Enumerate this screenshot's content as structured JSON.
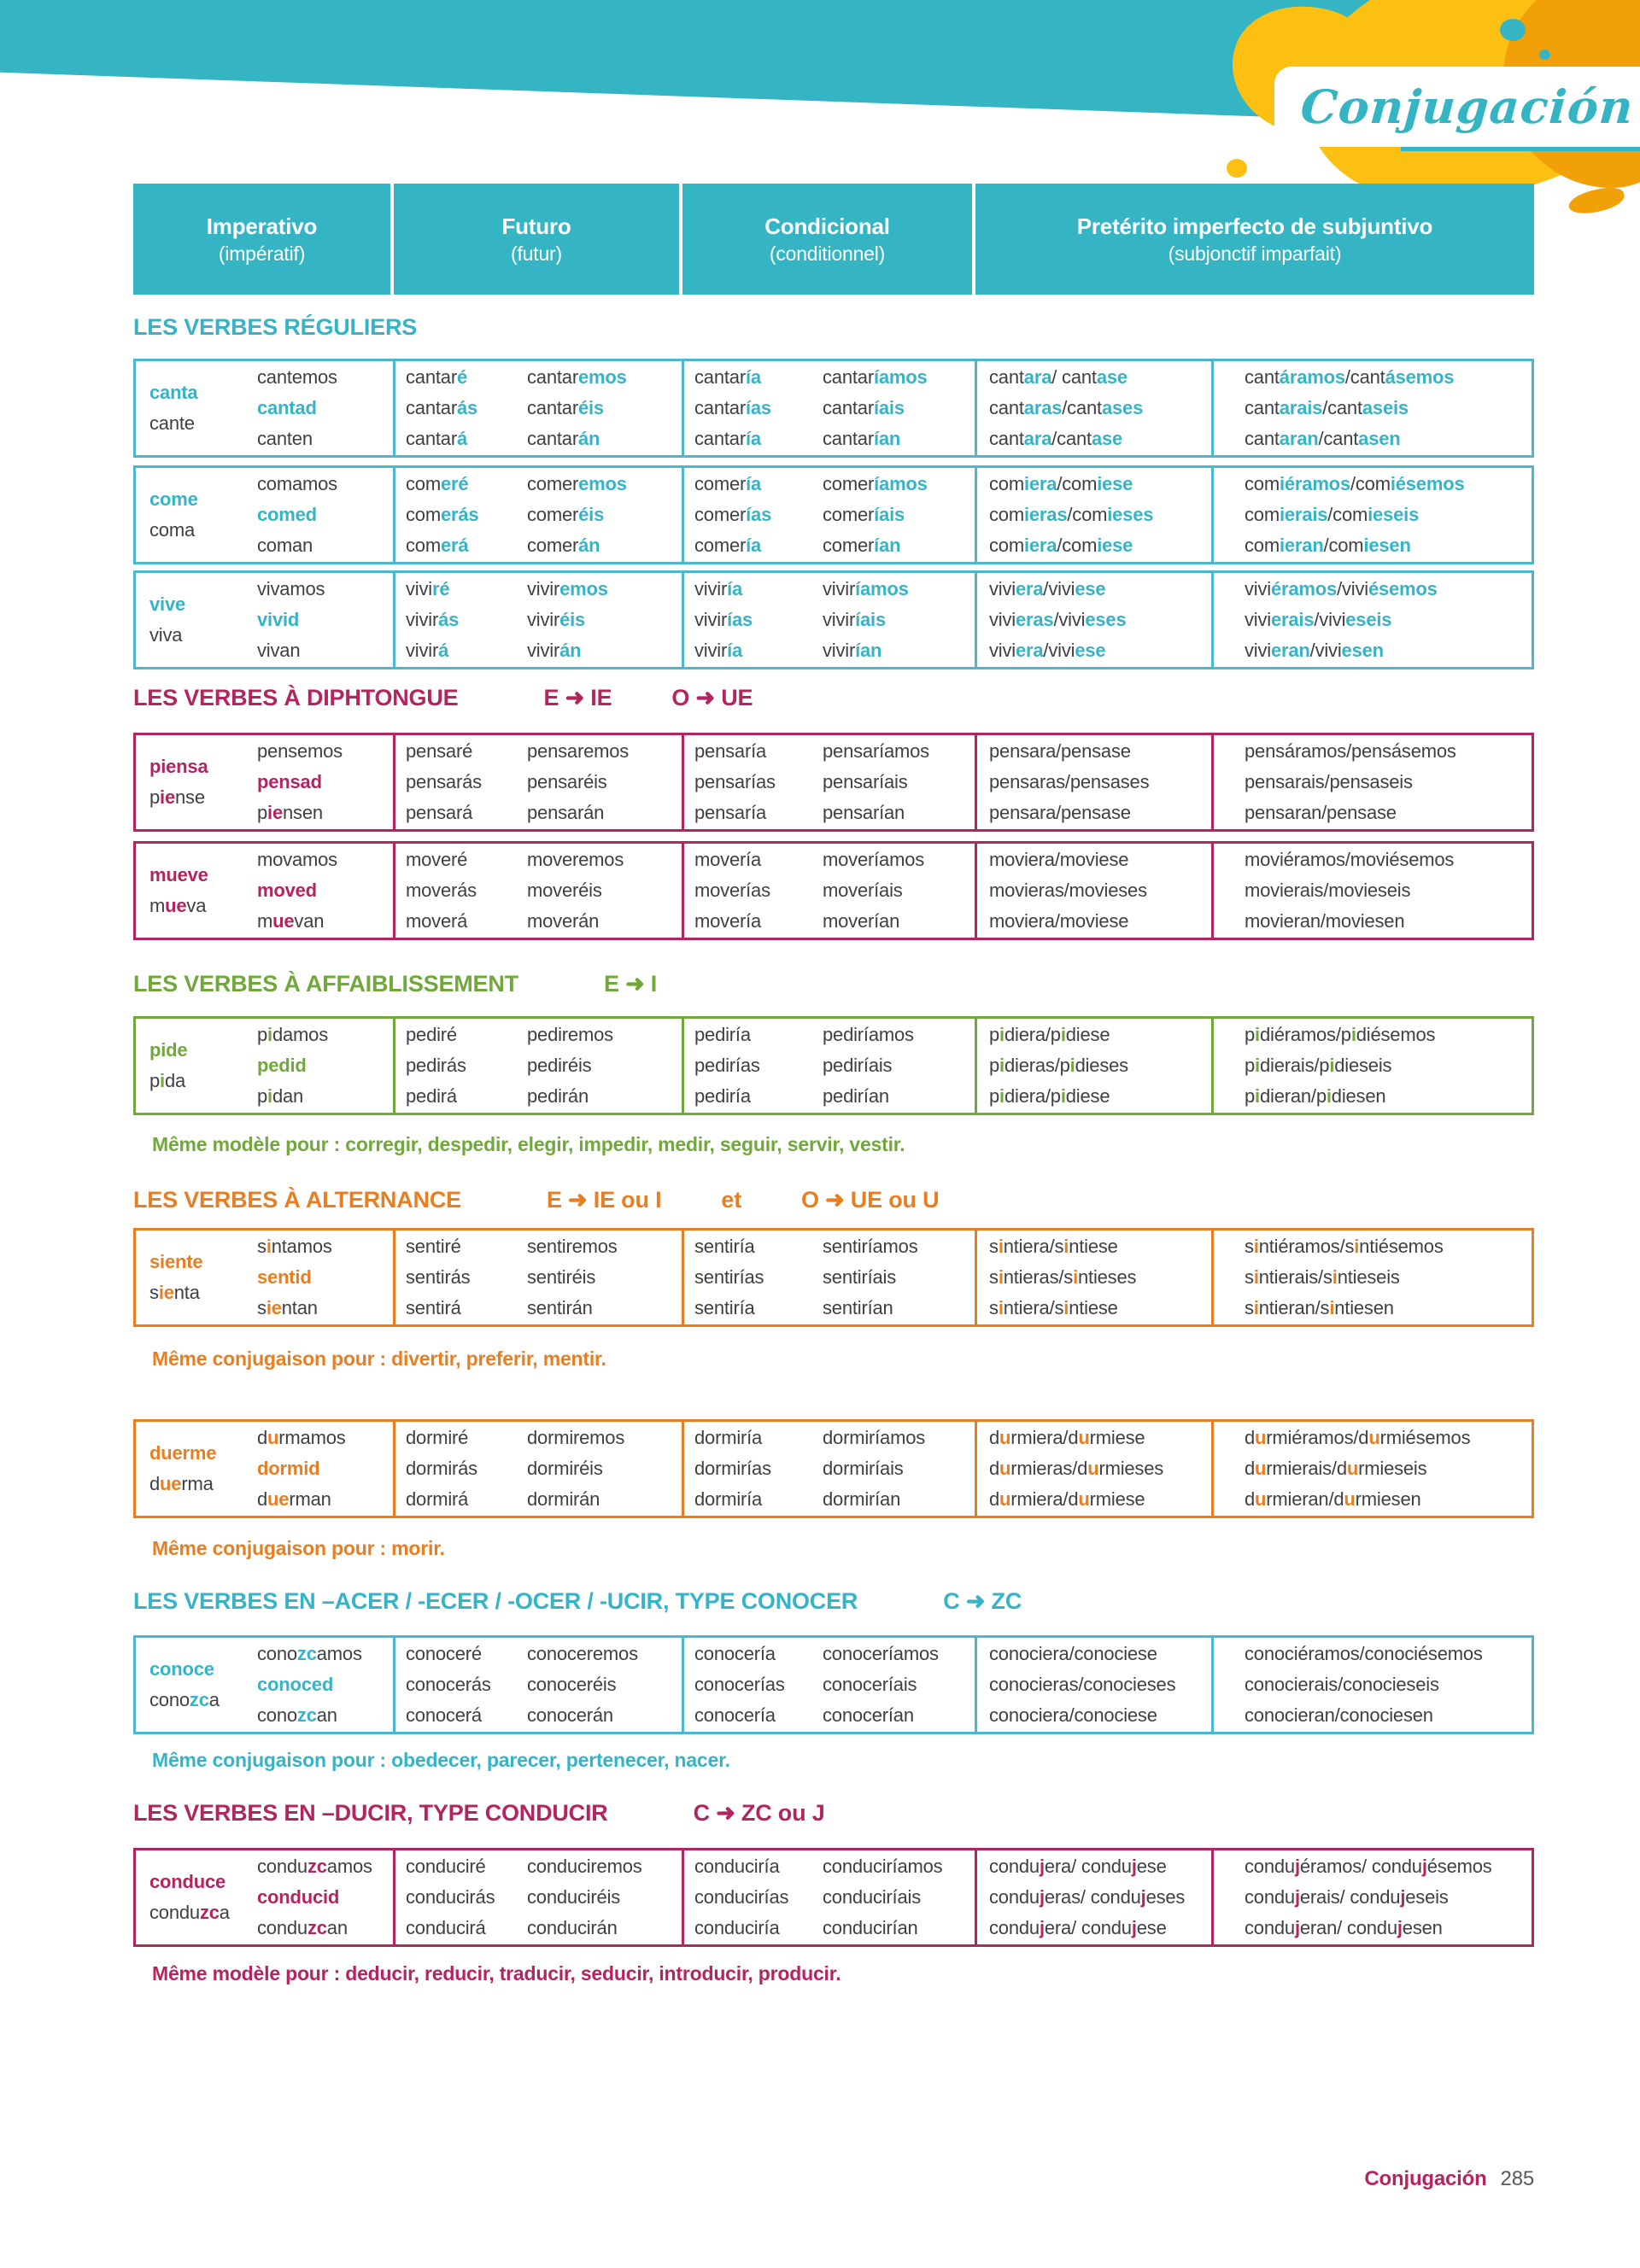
{
  "banner": {
    "title": "Conjugación"
  },
  "header": {
    "cols": [
      {
        "title": "Imperativo",
        "sub": "(impératif)"
      },
      {
        "title": "Futuro",
        "sub": "(futur)"
      },
      {
        "title": "Condicional",
        "sub": "(conditionnel)"
      },
      {
        "title": "Pretérito imperfecto de subjuntivo",
        "sub": "(subjonctif imparfait)"
      }
    ]
  },
  "colors": {
    "teal": "#35b4c8",
    "magenta": "#b32561",
    "green": "#71a83b",
    "orange": "#e87e22"
  },
  "sections": [
    {
      "title": "LES VERBES RÉGULIERS",
      "color": "teal",
      "formula_parts": [],
      "rows": [
        {
          "label1": "[canta]",
          "label2": "cante",
          "imperative": [
            "cantemos",
            "[cantad]",
            "canten"
          ],
          "future_sing": [
            "cantar[é]",
            "cantar[ás]",
            "cantar[á]"
          ],
          "future_plur": [
            "cantar[emos]",
            "cantar[éis]",
            "cantar[án]"
          ],
          "cond_sing": [
            "cantar[ía]",
            "cantar[ías]",
            "cantar[ía]"
          ],
          "cond_plur": [
            "cantar[íamos]",
            "cantar[íais]",
            "cantar[ían]"
          ],
          "subj_sing": [
            "cant[ara]/ cant[ase]",
            "cant[aras]/cant[ases]",
            "cant[ara]/cant[ase]"
          ],
          "subj_plur": [
            "cant[áramos]/cant[ásemos]",
            "cant[arais]/cant[aseis]",
            "cant[aran]/cant[asen]"
          ]
        },
        {
          "label1": "[come]",
          "label2": "coma",
          "imperative": [
            "comamos",
            "[comed]",
            "coman"
          ],
          "future_sing": [
            "com[eré]",
            "com[erás]",
            "com[erá]"
          ],
          "future_plur": [
            "comer[emos]",
            "comer[éis]",
            "comer[án]"
          ],
          "cond_sing": [
            "comer[ía]",
            "comer[ías]",
            "comer[ía]"
          ],
          "cond_plur": [
            "comer[íamos]",
            "comer[íais]",
            "comer[ían]"
          ],
          "subj_sing": [
            "com[iera]/com[iese]",
            "com[ieras]/com[ieses]",
            "com[iera]/com[iese]"
          ],
          "subj_plur": [
            "com[iéramos]/com[iésemos]",
            "com[ierais]/com[ieseis]",
            "com[ieran]/com[iesen]"
          ]
        },
        {
          "label1": "[vive]",
          "label2": "viva",
          "imperative": [
            "vivamos",
            "[vivid]",
            "vivan"
          ],
          "future_sing": [
            "vivi[ré]",
            "vivir[ás]",
            "vivir[á]"
          ],
          "future_plur": [
            "vivir[emos]",
            "vivir[éis]",
            "vivir[án]"
          ],
          "cond_sing": [
            "vivir[ía]",
            "vivir[ías]",
            "vivir[ía]"
          ],
          "cond_plur": [
            "vivir[íamos]",
            "vivir[íais]",
            "vivir[ían]"
          ],
          "subj_sing": [
            "vivi[era]/vivi[ese]",
            "vivi[eras]/vivi[eses]",
            "vivi[era]/vivi[ese]"
          ],
          "subj_plur": [
            "vivi[éramos]/vivi[ésemos]",
            "vivi[erais]/vivi[eseis]",
            "vivi[eran]/vivi[esen]"
          ]
        }
      ]
    },
    {
      "title": "LES VERBES À DIPHTONGUE",
      "color": "magenta",
      "formula_parts": [
        "E ➜ IE",
        "O ➜ UE"
      ],
      "rows": [
        {
          "label1": "[piensa]",
          "label2": "p[ie]nse",
          "imperative": [
            "pensemos",
            "[pensad]",
            "p[ie]nsen"
          ],
          "future_sing": [
            "pensaré",
            "pensarás",
            "pensará"
          ],
          "future_plur": [
            "pensaremos",
            "pensaréis",
            "pensarán"
          ],
          "cond_sing": [
            "pensaría",
            "pensarías",
            "pensaría"
          ],
          "cond_plur": [
            "pensaríamos",
            "pensaríais",
            "pensarían"
          ],
          "subj_sing": [
            "pensara/pensase",
            "pensaras/pensases",
            "pensara/pensase"
          ],
          "subj_plur": [
            "pensáramos/pensásemos",
            "pensarais/pensaseis",
            "pensaran/pensase"
          ]
        },
        {
          "label1": "[mueve]",
          "label2": "m[ue]va",
          "imperative": [
            "movamos",
            "[moved]",
            "m[ue]van"
          ],
          "future_sing": [
            "moveré",
            "moverás",
            "moverá"
          ],
          "future_plur": [
            "moveremos",
            "moveréis",
            "moverán"
          ],
          "cond_sing": [
            "movería",
            "moverías",
            "movería"
          ],
          "cond_plur": [
            "moveríamos",
            "moveríais",
            "moverían"
          ],
          "subj_sing": [
            "moviera/moviese",
            "movieras/movieses",
            "moviera/moviese"
          ],
          "subj_plur": [
            "moviéramos/moviésemos",
            "movierais/movieseis",
            "movieran/moviesen"
          ]
        }
      ]
    },
    {
      "title": "LES VERBES À AFFAIBLISSEMENT",
      "color": "green",
      "formula_parts": [
        "E ➜ I"
      ],
      "rows": [
        {
          "label1": "[pide]",
          "label2": "p[i]da",
          "imperative": [
            "p[i]damos",
            "[pedid]",
            "p[i]dan"
          ],
          "future_sing": [
            "pediré",
            "pedirás",
            "pedirá"
          ],
          "future_plur": [
            "pediremos",
            "pediréis",
            "pedirán"
          ],
          "cond_sing": [
            "pediría",
            "pedirías",
            "pediría"
          ],
          "cond_plur": [
            "pediríamos",
            "pediríais",
            "pedirían"
          ],
          "subj_sing": [
            "p[i]diera/p[i]diese",
            "p[i]dieras/p[i]dieses",
            "p[i]diera/p[i]diese"
          ],
          "subj_plur": [
            "p[i]diéramos/p[i]diésemos",
            "p[i]dierais/p[i]dieseis",
            "p[i]dieran/p[i]diesen"
          ],
          "note": "Même modèle pour : corregir, despedir, elegir, impedir, medir, seguir, servir, vestir."
        }
      ]
    },
    {
      "title": "LES VERBES À ALTERNANCE",
      "color": "orange",
      "formula_parts": [
        "E ➜ IE ou I",
        "et",
        "O ➜ UE ou U"
      ],
      "rows": [
        {
          "label1": "[siente]",
          "label2": "s[ie]nta",
          "imperative": [
            "s[i]ntamos",
            "[sentid]",
            "s[ie]ntan"
          ],
          "future_sing": [
            "sentiré",
            "sentirás",
            "sentirá"
          ],
          "future_plur": [
            "sentiremos",
            "sentiréis",
            "sentirán"
          ],
          "cond_sing": [
            "sentiría",
            "sentirías",
            "sentiría"
          ],
          "cond_plur": [
            "sentiríamos",
            "sentiríais",
            "sentirían"
          ],
          "subj_sing": [
            "s[i]ntiera/s[i]ntiese",
            "s[i]ntieras/s[i]ntieses",
            "s[i]ntiera/s[i]ntiese"
          ],
          "subj_plur": [
            "s[i]ntiéramos/s[i]ntiésemos",
            "s[i]ntierais/s[i]ntieseis",
            "s[i]ntieran/s[i]ntiesen"
          ],
          "note": "Même conjugaison pour : divertir, preferir, mentir."
        },
        {
          "label1": "[duerme]",
          "label2": "d[ue]rma",
          "imperative": [
            "d[u]rmamos",
            "[dormid]",
            "d[ue]rman"
          ],
          "future_sing": [
            "dormiré",
            "dormirás",
            "dormirá"
          ],
          "future_plur": [
            "dormiremos",
            "dormiréis",
            "dormirán"
          ],
          "cond_sing": [
            "dormiría",
            "dormirías",
            "dormiría"
          ],
          "cond_plur": [
            "dormiríamos",
            "dormiríais",
            "dormirían"
          ],
          "subj_sing": [
            "d[u]rmiera/d[u]rmiese",
            "d[u]rmieras/d[u]rmieses",
            "d[u]rmiera/d[u]rmiese"
          ],
          "subj_plur": [
            "d[u]rmiéramos/d[u]rmiésemos",
            "d[u]rmierais/d[u]rmieseis",
            "d[u]rmieran/d[u]rmiesen"
          ],
          "note": "Même conjugaison pour : morir."
        }
      ]
    },
    {
      "title": "LES VERBES EN –ACER / -ECER / -OCER / -UCIR, TYPE CONOCER",
      "color": "teal",
      "formula_parts": [
        "C ➜ ZC"
      ],
      "rows": [
        {
          "label1": "[conoce]",
          "label2": "cono[zc]a",
          "imperative": [
            "cono[zc]amos",
            "[conoced]",
            "cono[zc]an"
          ],
          "future_sing": [
            "conoceré",
            "conocerás",
            "conocerá"
          ],
          "future_plur": [
            "conoceremos",
            "conoceréis",
            "conocerán"
          ],
          "cond_sing": [
            "conocería",
            "conocerías",
            "conocería"
          ],
          "cond_plur": [
            "conoceríamos",
            "conoceríais",
            "conocerían"
          ],
          "subj_sing": [
            "conociera/conociese",
            "conocieras/conocieses",
            "conociera/conociese"
          ],
          "subj_plur": [
            "conociéramos/conociésemos",
            "conocierais/conocieseis",
            "conocieran/conociesen"
          ],
          "note": "Même conjugaison pour : obedecer, parecer, pertenecer, nacer."
        }
      ]
    },
    {
      "title": "LES VERBES EN –DUCIR, TYPE CONDUCIR",
      "color": "magenta",
      "formula_parts": [
        "C ➜ ZC ou J"
      ],
      "rows": [
        {
          "label1": "[conduce]",
          "label2": "condu[zc]a",
          "imperative": [
            "condu[zc]amos",
            "[conducid]",
            "condu[zc]an"
          ],
          "future_sing": [
            "conduciré",
            "conducirás",
            "conducirá"
          ],
          "future_plur": [
            "conduciremos",
            "conduciréis",
            "conducirán"
          ],
          "cond_sing": [
            "conduciría",
            "conducirías",
            "conduciría"
          ],
          "cond_plur": [
            "conduciríamos",
            "conduciríais",
            "conducirían"
          ],
          "subj_sing": [
            "condu[j]era/ condu[j]ese",
            "condu[j]eras/ condu[j]eses",
            "condu[j]era/ condu[j]ese"
          ],
          "subj_plur": [
            "condu[j]éramos/ condu[j]ésemos",
            "condu[j]erais/ condu[j]eseis",
            "condu[j]eran/ condu[j]esen"
          ],
          "note": "Même modèle pour : deducir, reducir, traducir, seducir, introducir, producir."
        }
      ]
    }
  ],
  "footer": {
    "label": "Conjugación",
    "page": "285"
  }
}
